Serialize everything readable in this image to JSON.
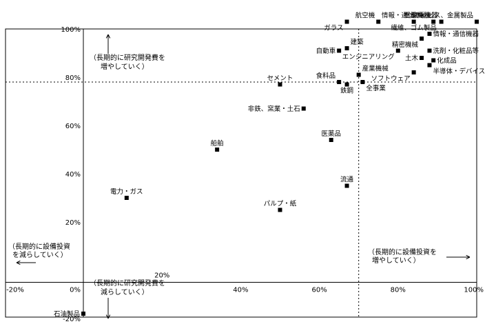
{
  "chart_data": {
    "type": "scatter",
    "xlim": [
      -20,
      100
    ],
    "ylim": [
      -20,
      100
    ],
    "x_ticks": [
      {
        "value": -20,
        "label": "-20%"
      },
      {
        "value": 0,
        "label": "0%"
      },
      {
        "value": 20,
        "label": "20%"
      },
      {
        "value": 40,
        "label": "40%"
      },
      {
        "value": 60,
        "label": "60%"
      },
      {
        "value": 80,
        "label": "80%"
      },
      {
        "value": 100,
        "label": "100%"
      }
    ],
    "y_ticks": [
      {
        "value": -20,
        "label": "-20%"
      },
      {
        "value": 20,
        "label": "20%"
      },
      {
        "value": 40,
        "label": "40%"
      },
      {
        "value": 60,
        "label": "60%"
      },
      {
        "value": 80,
        "label": "80%"
      },
      {
        "value": 100,
        "label": "100%"
      }
    ],
    "reference_lines": {
      "x": 70,
      "y": 78
    },
    "points": [
      {
        "label": "石油製品",
        "x": 0,
        "y": -18,
        "lx": -1,
        "ly": 0
      },
      {
        "label": "電力・ガス",
        "x": 11,
        "y": 30,
        "lx": 0,
        "ly": -1
      },
      {
        "label": "船舶",
        "x": 34,
        "y": 50,
        "lx": 0,
        "ly": -1
      },
      {
        "label": "パルプ・紙",
        "x": 50,
        "y": 25,
        "lx": 0,
        "ly": -1
      },
      {
        "label": "セメント",
        "x": 50,
        "y": 77,
        "lx": 0,
        "ly": -1
      },
      {
        "label": "非鉄、窯業・土石",
        "x": 56,
        "y": 67,
        "lx": -1,
        "ly": 0
      },
      {
        "label": "医薬品",
        "x": 63,
        "y": 54,
        "lx": 0,
        "ly": -1
      },
      {
        "label": "流通",
        "x": 67,
        "y": 35,
        "lx": 0,
        "ly": -1
      },
      {
        "label": "食料品",
        "x": 65,
        "y": 78,
        "lx": -1,
        "ly": -1
      },
      {
        "label": "鉄鋼",
        "x": 67,
        "y": 77,
        "lx": 0,
        "ly": 1
      },
      {
        "label": "全事業",
        "x": 71,
        "y": 78,
        "lx": 1,
        "ly": 1
      },
      {
        "label": "産業機械",
        "x": 70,
        "y": 81,
        "lx": 1,
        "ly": -1
      },
      {
        "label": "自動車",
        "x": 65,
        "y": 91,
        "lx": -1,
        "ly": 0
      },
      {
        "label": "建築",
        "x": 67,
        "y": 92,
        "lx": 1,
        "ly": -1
      },
      {
        "label": "ガラス",
        "x": 67,
        "y": 103,
        "lx": -1,
        "ly": 1
      },
      {
        "label": "航空機",
        "x": 75,
        "y": 103,
        "lx": -1,
        "ly": -1
      },
      {
        "label": "繊維、ゴム製品",
        "x": 84,
        "y": 103,
        "lx": 0,
        "ly": 1
      },
      {
        "label": "重電機器",
        "x": 89,
        "y": 103,
        "lx": -1,
        "ly": -1
      },
      {
        "label": "家電機器",
        "x": 91,
        "y": 103,
        "lx": -1,
        "ly": -1
      },
      {
        "label": "情報・通信サービス、金属製品",
        "x": 100,
        "y": 103,
        "lx": -1,
        "ly": -1
      },
      {
        "label": "情報・通信機器",
        "x": 88,
        "y": 98,
        "lx": 1,
        "ly": 0
      },
      {
        "label": "精密機械",
        "x": 86,
        "y": 96,
        "lx": -1,
        "ly": 1
      },
      {
        "label": "エンジニアリング",
        "x": 80,
        "y": 91,
        "lx": -1,
        "ly": 1
      },
      {
        "label": "洗剤・化粧品等",
        "x": 88,
        "y": 91,
        "lx": 1,
        "ly": 0
      },
      {
        "label": "土木",
        "x": 86,
        "y": 88,
        "lx": -1,
        "ly": 0
      },
      {
        "label": "化成品",
        "x": 89,
        "y": 87,
        "lx": 1,
        "ly": 0
      },
      {
        "label": "半導体・デバイス",
        "x": 88,
        "y": 85,
        "lx": 1,
        "ly": 1
      },
      {
        "label": "ソフトウェア",
        "x": 84,
        "y": 82,
        "lx": -1,
        "ly": 1
      }
    ],
    "annotations": {
      "rd_up": [
        "（長期的に研究開発費を",
        "増やしていく）"
      ],
      "rd_down": [
        "（長期的に研究開発費を",
        "減らしていく）"
      ],
      "capex_down": [
        "（長期的に設備投資",
        "を減らしていく）"
      ],
      "capex_up": [
        "（長期的に設備投資を",
        "増やしていく）"
      ],
      "inner_tick": "20%"
    }
  }
}
